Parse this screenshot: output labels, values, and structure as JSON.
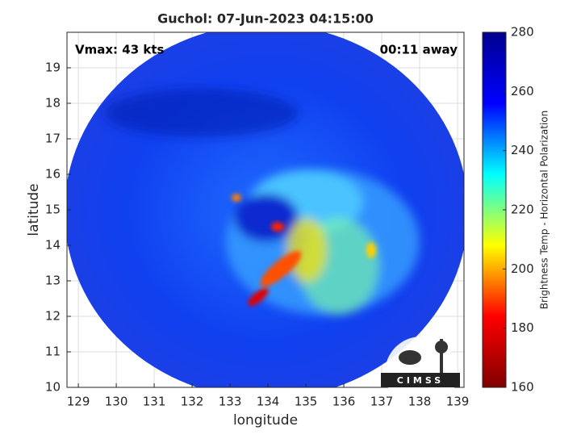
{
  "chart_data": {
    "type": "satellite-map",
    "title": "Guchol: 07-Jun-2023 04:15:00",
    "xlabel": "longitude",
    "ylabel": "latitude",
    "annotations": [
      "Vmax: 43 kts",
      "00:11 away"
    ],
    "logo": "CIMSS",
    "xlim": [
      128.7,
      139.17
    ],
    "xticks": [
      129,
      130,
      131,
      132,
      133,
      134,
      135,
      136,
      137,
      138,
      139
    ],
    "ylim": [
      10,
      20
    ],
    "yticks": [
      10,
      11,
      12,
      13,
      14,
      15,
      16,
      17,
      18,
      19
    ],
    "grid": true,
    "colorbar": {
      "label": "Brightness Temp - Horizontal Polarization",
      "clim": [
        160,
        280
      ],
      "ticks": [
        160,
        180,
        200,
        220,
        240,
        260,
        280
      ],
      "colormap": [
        "#800000",
        "#ff0000",
        "#ffff00",
        "#00ffff",
        "#0000ff",
        "#00008f"
      ]
    }
  }
}
